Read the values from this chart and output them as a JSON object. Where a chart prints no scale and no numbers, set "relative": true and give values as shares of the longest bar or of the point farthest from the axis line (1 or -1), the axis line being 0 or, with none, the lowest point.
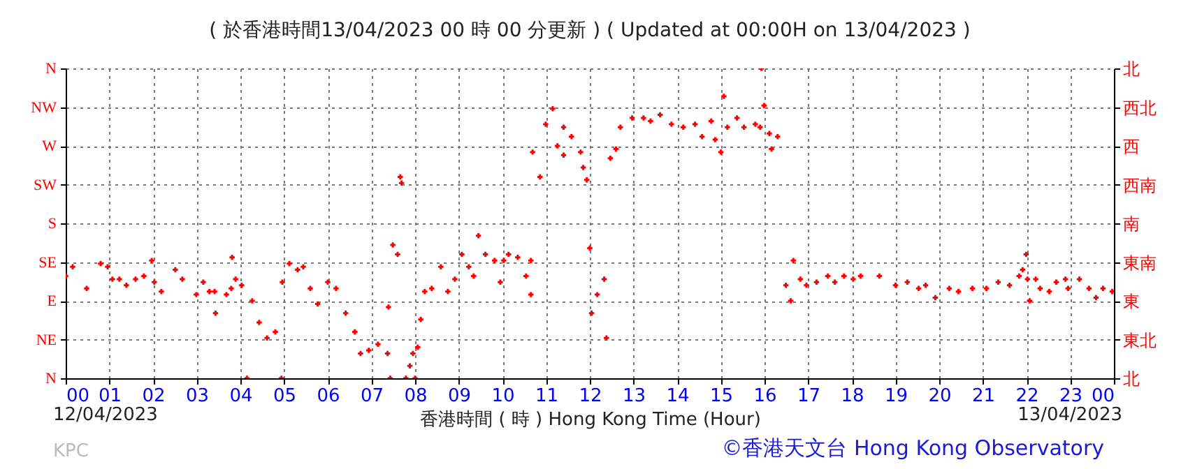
{
  "chart_data": {
    "type": "scatter",
    "title": "( 於香港時間13/04/2023 00 時 00 分更新 ) ( Updated at 00:00H on 13/04/2023 )",
    "xlabel": "香港時間 ( 時 ) Hong Kong Time (Hour)",
    "annotations": [
      "12/04/2023",
      "13/04/2023",
      "KPC",
      "©香港天文台 Hong Kong Observatory",
      "N",
      "NE",
      "E",
      "SE",
      "S",
      "SW",
      "W",
      "NW",
      "N",
      "北",
      "東北",
      "東",
      "東南",
      "南",
      "西南",
      "西",
      "西北",
      "北"
    ],
    "relative": true,
    "x": [
      0,
      0.16,
      0.48,
      0.8,
      0.96,
      1.07,
      1.23,
      1.39,
      1.6,
      1.79,
      1.97,
      2.03,
      2.19,
      2.51,
      2.67,
      2.99,
      3.15,
      3.29,
      3.41,
      3.43,
      3.68,
      3.79,
      3.81,
      3.89,
      4.03,
      4.15,
      4.27,
      4.43,
      4.61,
      4.8,
      4.94,
      4.96,
      5.12,
      5.31,
      5.44,
      5.6,
      5.77,
      6.0,
      6.19,
      6.41,
      6.62,
      6.75,
      6.94,
      7.15,
      7.37,
      7.39,
      7.43,
      7.49,
      7.6,
      7.66,
      7.69,
      7.79,
      7.88,
      7.95,
      8.0,
      8.06,
      8.13,
      8.22,
      8.38,
      8.59,
      8.75,
      8.91,
      9.07,
      9.23,
      9.34,
      9.45,
      9.61,
      9.82,
      9.95,
      10.03,
      10.14,
      10.35,
      10.54,
      10.65,
      10.65,
      10.69,
      10.86,
      10.99,
      11.15,
      11.26,
      11.4,
      11.4,
      11.58,
      11.79,
      11.85,
      11.93,
      12.0,
      12.04,
      12.17,
      12.33,
      12.38,
      12.47,
      12.6,
      12.7,
      12.97,
      13.23,
      13.39,
      13.61,
      13.87,
      14.14,
      14.41,
      14.57,
      14.78,
      14.87,
      15.0,
      15.07,
      15.15,
      15.37,
      15.53,
      15.79,
      15.9,
      15.93,
      15.99,
      16.11,
      16.16,
      16.3,
      16.49,
      16.6,
      16.66,
      16.82,
      16.96,
      17.19,
      17.45,
      17.61,
      17.82,
      18.03,
      18.2,
      18.63,
      19.0,
      19.27,
      19.53,
      19.69,
      19.91,
      20.23,
      20.44,
      20.76,
      21.08,
      21.35,
      21.61,
      21.83,
      21.91,
      21.99,
      22.02,
      22.07,
      22.21,
      22.31,
      22.52,
      22.68,
      22.89,
      22.95,
      23.21,
      23.43,
      23.59,
      23.75,
      23.96
    ],
    "series": [
      {
        "color": "#ff0000",
        "values": [
          0.33,
          0.36,
          0.29,
          0.37,
          0.36,
          0.32,
          0.32,
          0.3,
          0.32,
          0.33,
          0.38,
          0.31,
          0.28,
          0.35,
          0.32,
          0.27,
          0.31,
          0.28,
          0.28,
          0.21,
          0.27,
          0.29,
          0.39,
          0.32,
          0.3,
          0,
          0.25,
          0.18,
          0.13,
          0.15,
          0,
          0.31,
          0.37,
          0.35,
          0.36,
          0.29,
          0.24,
          0.31,
          0.29,
          0.21,
          0.15,
          0.08,
          0.09,
          0.11,
          0.08,
          0.23,
          0,
          0.43,
          0.4,
          0.65,
          0.63,
          0,
          0.04,
          0.08,
          0,
          0.1,
          0.19,
          0.28,
          0.29,
          0.36,
          0.28,
          0.32,
          0.4,
          0.36,
          0.33,
          0.46,
          0.4,
          0.38,
          0.31,
          0.38,
          0.4,
          0.39,
          0.33,
          0.38,
          0.27,
          0.73,
          0.65,
          0.82,
          0.87,
          0.75,
          0.81,
          0.72,
          0.78,
          0.73,
          0.68,
          0.64,
          0.42,
          0.21,
          0.27,
          0.32,
          0.13,
          0.71,
          0.74,
          0.81,
          0.84,
          0.84,
          0.83,
          0.85,
          0.82,
          0.81,
          0.82,
          0.78,
          0.83,
          0.77,
          0.73,
          0.91,
          0.81,
          0.84,
          0.81,
          0.82,
          0.81,
          1,
          0.88,
          0.79,
          0.74,
          0.78,
          0.3,
          0.25,
          0.38,
          0.32,
          0.3,
          0.31,
          0.33,
          0.31,
          0.33,
          0.32,
          0.33,
          0.33,
          0.3,
          0.31,
          0.29,
          0.3,
          0.26,
          0.29,
          0.28,
          0.29,
          0.29,
          0.31,
          0.3,
          0.33,
          0.35,
          0.4,
          0.32,
          0.25,
          0.32,
          0.29,
          0.28,
          0.31,
          0.32,
          0.29,
          0.32,
          0.29,
          0.26,
          0.29,
          0.28
        ]
      }
    ],
    "xlim": [
      0,
      24
    ],
    "xticks": [
      {
        "value": 0,
        "label": "00"
      },
      {
        "value": 1,
        "label": "01"
      },
      {
        "value": 2,
        "label": "02"
      },
      {
        "value": 3,
        "label": "03"
      },
      {
        "value": 4,
        "label": "04"
      },
      {
        "value": 5,
        "label": "05"
      },
      {
        "value": 6,
        "label": "06"
      },
      {
        "value": 7,
        "label": "07"
      },
      {
        "value": 8,
        "label": "08"
      },
      {
        "value": 9,
        "label": "09"
      },
      {
        "value": 10,
        "label": "10"
      },
      {
        "value": 11,
        "label": "11"
      },
      {
        "value": 12,
        "label": "12"
      },
      {
        "value": 13,
        "label": "13"
      },
      {
        "value": 14,
        "label": "14"
      },
      {
        "value": 15,
        "label": "15"
      },
      {
        "value": 16,
        "label": "16"
      },
      {
        "value": 17,
        "label": "17"
      },
      {
        "value": 18,
        "label": "18"
      },
      {
        "value": 19,
        "label": "19"
      },
      {
        "value": 20,
        "label": "20"
      },
      {
        "value": 21,
        "label": "21"
      },
      {
        "value": 22,
        "label": "22"
      },
      {
        "value": 23,
        "label": "23"
      },
      {
        "value": 24,
        "label": "00"
      }
    ],
    "grid": true,
    "marker": "cross"
  }
}
